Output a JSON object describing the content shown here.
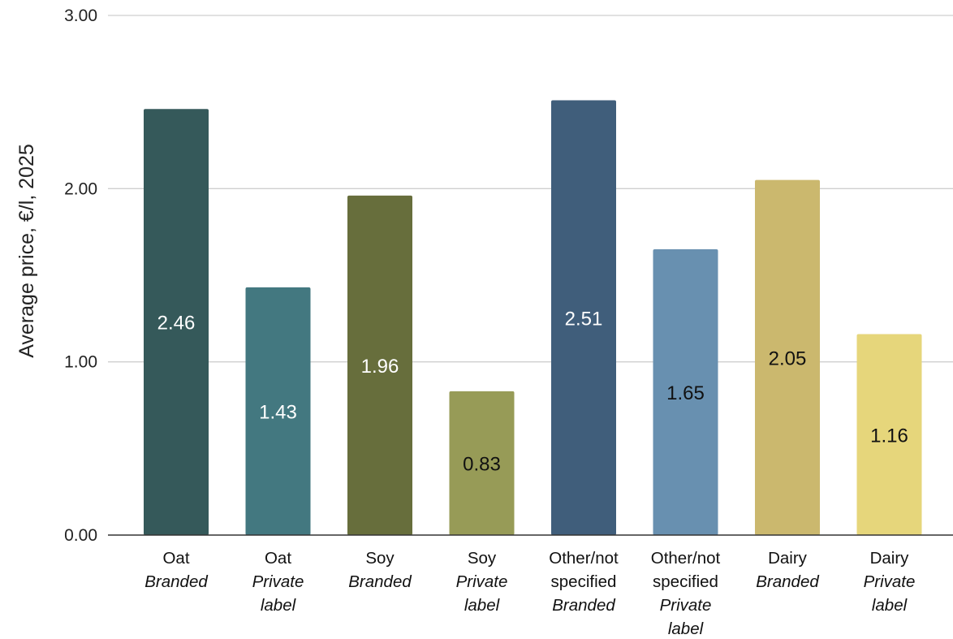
{
  "chart_data": {
    "type": "bar",
    "title": "",
    "xlabel": "",
    "ylabel": "Average price, €/l, 2025",
    "ylim": [
      0,
      3
    ],
    "yticks": [
      "0.00",
      "1.00",
      "2.00",
      "3.00"
    ],
    "grid": true,
    "legend": "none",
    "categories": [
      {
        "main": "Oat",
        "sub": [
          "Branded"
        ]
      },
      {
        "main": "Oat",
        "sub": [
          "Private",
          "label"
        ]
      },
      {
        "main": "Soy",
        "sub": [
          "Branded"
        ]
      },
      {
        "main": "Soy",
        "sub": [
          "Private",
          "label"
        ]
      },
      {
        "main": "Other/not specified",
        "main_lines": [
          "Other/not",
          "specified"
        ],
        "sub": [
          "Branded"
        ]
      },
      {
        "main": "Other/not specified",
        "main_lines": [
          "Other/not",
          "specified"
        ],
        "sub": [
          "Private",
          "label"
        ]
      },
      {
        "main": "Dairy",
        "sub": [
          "Branded"
        ]
      },
      {
        "main": "Dairy",
        "sub": [
          "Private",
          "label"
        ]
      }
    ],
    "values": [
      2.46,
      1.43,
      1.96,
      0.83,
      2.51,
      1.65,
      2.05,
      1.16
    ],
    "data_labels": [
      "2.46",
      "1.43",
      "1.96",
      "0.83",
      "2.51",
      "1.65",
      "2.05",
      "1.16"
    ],
    "colors": [
      "#35595a",
      "#437880",
      "#676e3c",
      "#979b57",
      "#405e7b",
      "#6890b0",
      "#cbb86e",
      "#e6d67b"
    ],
    "label_colors": [
      "#ffffff",
      "#ffffff",
      "#ffffff",
      "#111111",
      "#ffffff",
      "#111111",
      "#111111",
      "#111111"
    ]
  }
}
